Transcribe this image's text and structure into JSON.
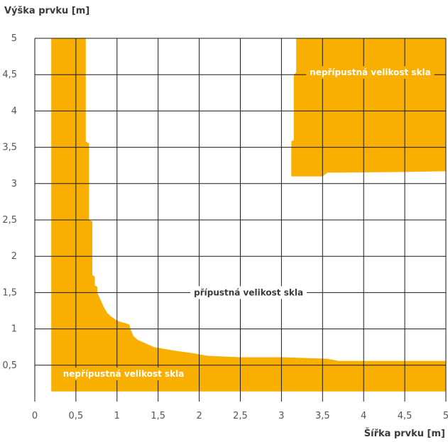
{
  "chart_data": {
    "type": "area",
    "ylabel": "Výška prvku [m]",
    "xlabel": "Šířka prvku [m]",
    "xlim": [
      0,
      5
    ],
    "ylim": [
      0,
      5
    ],
    "x_ticks": [
      "0",
      "0,5",
      "1",
      "1,5",
      "2",
      "2,5",
      "3",
      "3,5",
      "4",
      "4,5",
      "5"
    ],
    "y_ticks": [
      "0,5",
      "1",
      "1,5",
      "2",
      "2,5",
      "3",
      "3,5",
      "4",
      "4,5",
      "5"
    ],
    "grid": true,
    "colors": {
      "forbidden": "#F8AF00",
      "grid": "#1a1a1a"
    },
    "labels": {
      "forbidden": "nepřípustná velikost skla",
      "allowed": "přípustná velikost skla"
    },
    "forbidden_region_lower_left": [
      [
        0.2,
        0.14
      ],
      [
        0.2,
        5.0
      ],
      [
        0.62,
        5.0
      ],
      [
        0.62,
        3.58
      ],
      [
        0.66,
        3.55
      ],
      [
        0.66,
        2.5
      ],
      [
        0.7,
        2.48
      ],
      [
        0.7,
        1.74
      ],
      [
        0.73,
        1.72
      ],
      [
        0.73,
        1.6
      ],
      [
        0.76,
        1.58
      ],
      [
        0.76,
        1.5
      ],
      [
        0.8,
        1.4
      ],
      [
        0.84,
        1.3
      ],
      [
        0.88,
        1.22
      ],
      [
        0.93,
        1.17
      ],
      [
        0.98,
        1.13
      ],
      [
        1.03,
        1.1
      ],
      [
        1.1,
        1.08
      ],
      [
        1.15,
        1.06
      ],
      [
        1.17,
        0.98
      ],
      [
        1.2,
        0.9
      ],
      [
        1.25,
        0.85
      ],
      [
        1.35,
        0.8
      ],
      [
        1.45,
        0.75
      ],
      [
        1.55,
        0.73
      ],
      [
        1.7,
        0.7
      ],
      [
        1.9,
        0.67
      ],
      [
        2.1,
        0.63
      ],
      [
        2.5,
        0.61
      ],
      [
        3.0,
        0.61
      ],
      [
        3.55,
        0.59
      ],
      [
        3.7,
        0.56
      ],
      [
        5.0,
        0.56
      ],
      [
        5.0,
        0.14
      ]
    ],
    "forbidden_region_upper_right": [
      [
        3.12,
        3.1
      ],
      [
        3.12,
        3.58
      ],
      [
        3.15,
        3.6
      ],
      [
        3.15,
        4.5
      ],
      [
        3.18,
        4.53
      ],
      [
        3.18,
        5.0
      ],
      [
        5.0,
        5.0
      ],
      [
        5.0,
        3.17
      ],
      [
        4.5,
        3.16
      ],
      [
        3.56,
        3.15
      ],
      [
        3.5,
        3.1
      ]
    ]
  }
}
